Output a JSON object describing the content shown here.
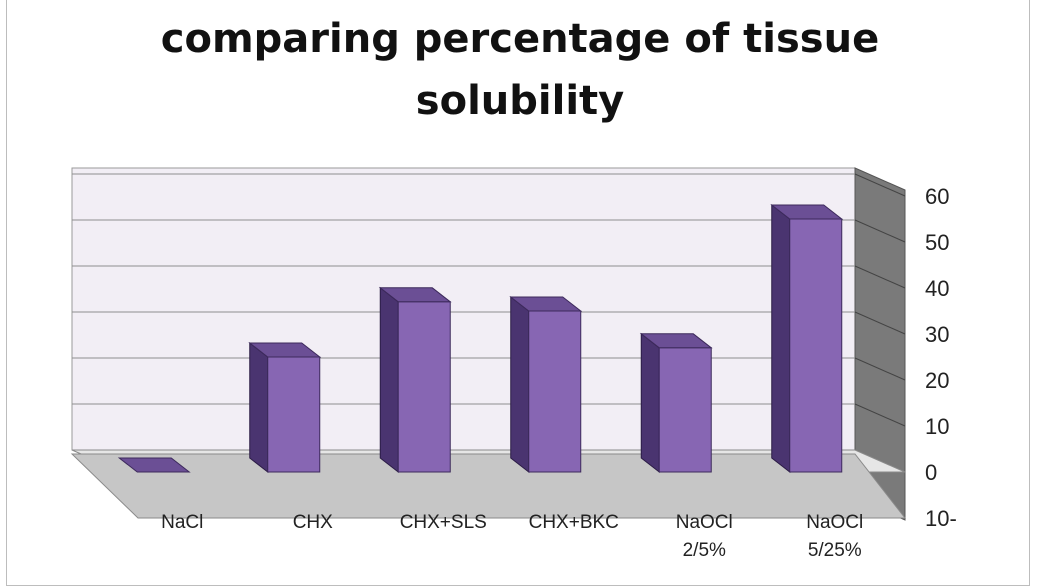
{
  "chart_data": {
    "type": "bar",
    "title": "comparing percentage of tissue solubility",
    "categories": [
      "NaCl",
      "CHX",
      "CHX+SLS",
      "CHX+BKC",
      "NaOCl\n2/5%",
      "NaOCl\n5/25%"
    ],
    "values": [
      0,
      25,
      37,
      35,
      27,
      55
    ],
    "ylim": [
      -10,
      60
    ],
    "yticks": [
      "60",
      "50",
      "40",
      "30",
      "20",
      "10",
      "0",
      "10-"
    ],
    "ytick_values": [
      60,
      50,
      40,
      30,
      20,
      10,
      0,
      -10
    ],
    "grid": true,
    "style": "3d",
    "colors": {
      "bar_front": "#8766b3",
      "bar_side": "#4a3470",
      "bar_top": "#6b4f95",
      "wall": "#f2eef5",
      "side_wall": "#7a7a7a",
      "floor": "#c6c6c6"
    }
  }
}
